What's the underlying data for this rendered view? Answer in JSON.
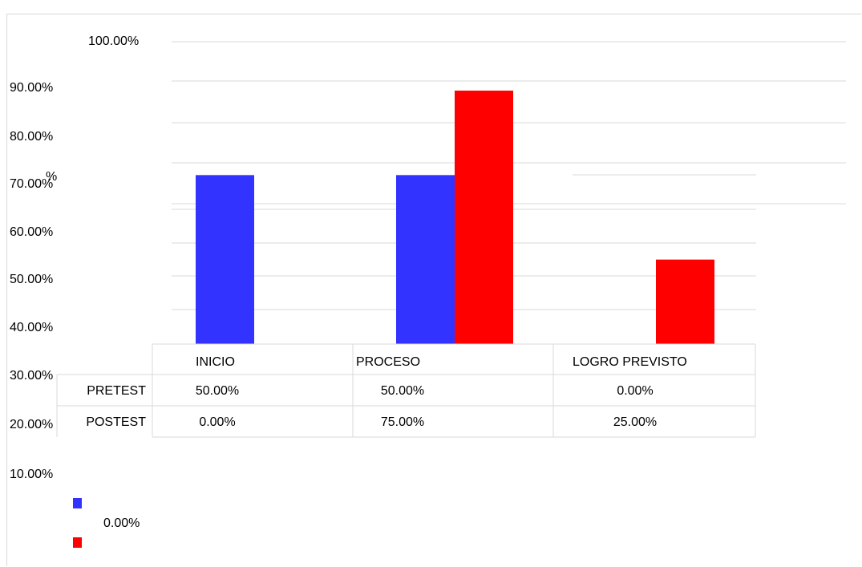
{
  "chart_data": {
    "type": "bar",
    "title": "",
    "xlabel": "",
    "ylabel": "",
    "categories": [
      "INICIO",
      "PROCESO",
      "LOGRO PREVISTO"
    ],
    "series": [
      {
        "name": "PRETEST",
        "values": [
          "50.00%",
          "50.00%",
          "0.00%"
        ],
        "numeric": [
          50,
          50,
          0
        ],
        "color": "#3333ff"
      },
      {
        "name": "POSTEST",
        "values": [
          "0.00%",
          "75.00%",
          "25.00%"
        ],
        "numeric": [
          0,
          75,
          25
        ],
        "color": "#ff0000"
      }
    ],
    "y_ticks": [
      "100.00%",
      "90.00%",
      "80.00%",
      "70.00%",
      "60.00%",
      "50.00%",
      "40.00%",
      "30.00%",
      "20.00%",
      "10.00%",
      "0.00%"
    ],
    "stray_label": "%",
    "grid": true,
    "legend": "data-table"
  }
}
